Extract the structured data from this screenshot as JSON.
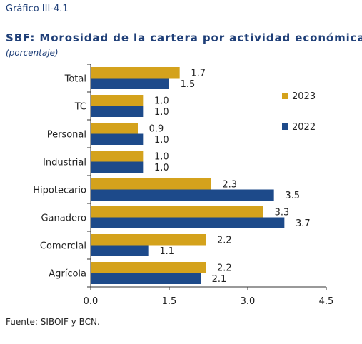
{
  "header": {
    "caption": "Gráfico III-4.1",
    "title": "SBF: Morosidad de la cartera por actividad económica",
    "subtitle": "(porcentaje)"
  },
  "footer": {
    "source": "Fuente: SIBOIF y BCN."
  },
  "colors": {
    "series_2023": "#d4a21c",
    "series_2022": "#1d4a8a",
    "text": "#1f3f78",
    "axis": "#333333",
    "panel_border": "#555555"
  },
  "chart_data": {
    "type": "bar",
    "orientation": "horizontal",
    "categories": [
      "Total",
      "TC",
      "Personal",
      "Industrial",
      "Hipotecario",
      "Ganadero",
      "Comercial",
      "Agrícola"
    ],
    "series": [
      {
        "name": "2023",
        "values": [
          1.7,
          1.0,
          0.9,
          1.0,
          2.3,
          3.3,
          2.2,
          2.2
        ],
        "labels": [
          "1.7",
          "1.0",
          "0.9",
          "1.0",
          "2.3",
          "3.3",
          "2.2",
          "2.2"
        ]
      },
      {
        "name": "2022",
        "values": [
          1.5,
          1.0,
          1.0,
          1.0,
          3.5,
          3.7,
          1.1,
          2.1
        ],
        "labels": [
          "1.5",
          "1.0",
          "1.0",
          "1.0",
          "3.5",
          "3.7",
          "1.1",
          "2.1"
        ]
      }
    ],
    "xlim": [
      0,
      4.5
    ],
    "xticks": [
      "0.0",
      "1.5",
      "3.0",
      "4.5"
    ],
    "xtick_values": [
      0,
      1.5,
      3.0,
      4.5
    ],
    "legend_position": "right",
    "grid": false
  }
}
